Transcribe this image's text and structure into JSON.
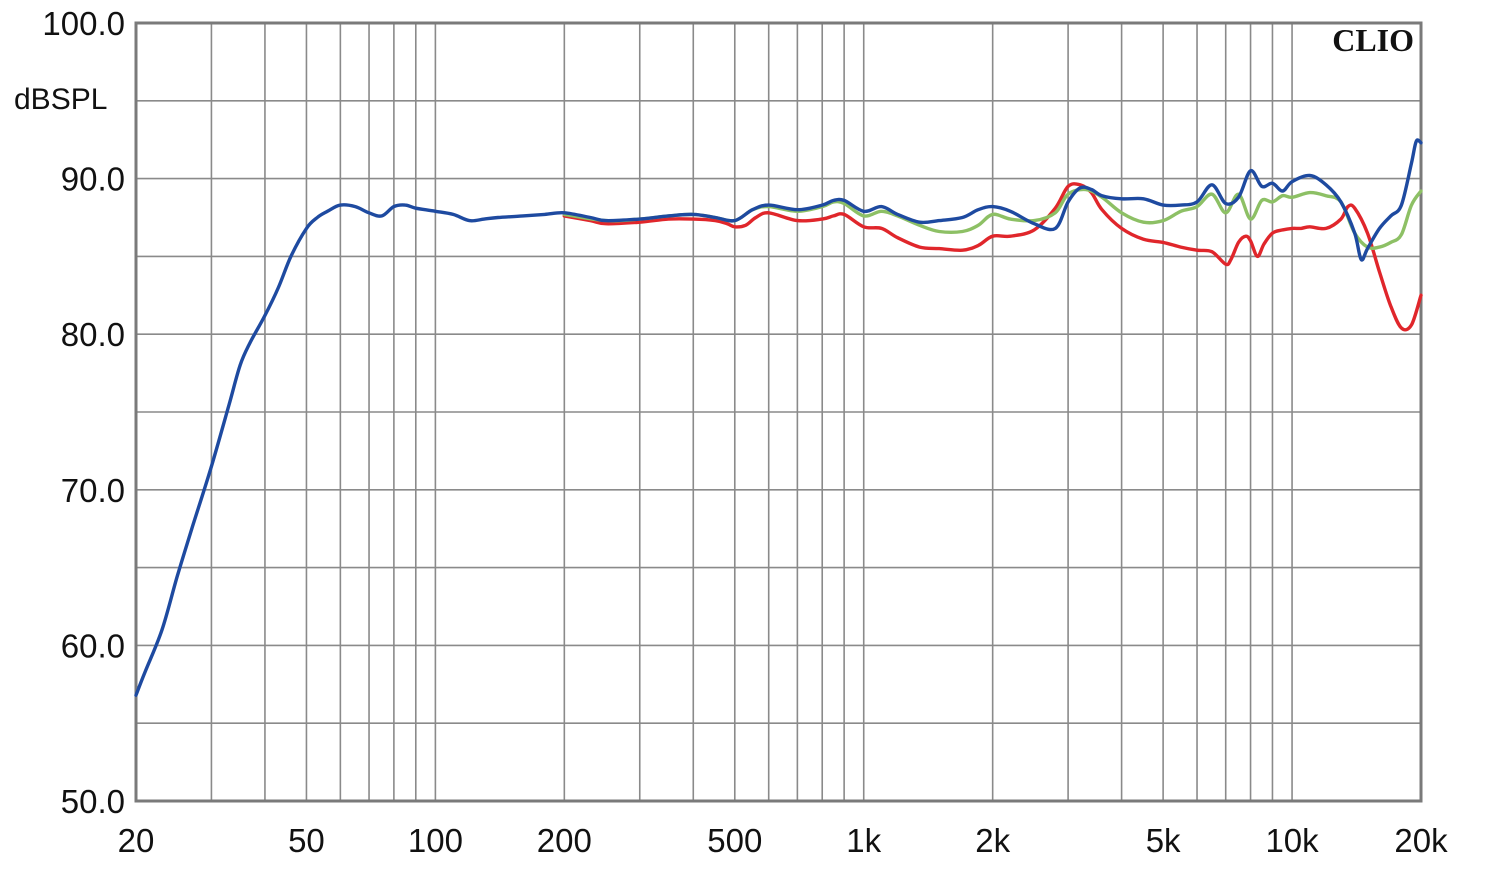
{
  "chart_data": {
    "type": "line",
    "title": "",
    "xlabel": "",
    "ylabel": "dBSPL",
    "brand": "CLIO",
    "x_scale": "log",
    "xlim": [
      20,
      20000
    ],
    "ylim": [
      50,
      100
    ],
    "grid": true,
    "x_ticks": [
      {
        "value": 20,
        "label": "20"
      },
      {
        "value": 50,
        "label": "50"
      },
      {
        "value": 100,
        "label": "100"
      },
      {
        "value": 200,
        "label": "200"
      },
      {
        "value": 500,
        "label": "500"
      },
      {
        "value": 1000,
        "label": "1k"
      },
      {
        "value": 2000,
        "label": "2k"
      },
      {
        "value": 5000,
        "label": "5k"
      },
      {
        "value": 10000,
        "label": "10k"
      },
      {
        "value": 20000,
        "label": "20k"
      }
    ],
    "y_ticks": [
      {
        "value": 100,
        "label": "100.0"
      },
      {
        "value": 90,
        "label": "90.0"
      },
      {
        "value": 80,
        "label": "80.0"
      },
      {
        "value": 70,
        "label": "70.0"
      },
      {
        "value": 60,
        "label": "60.0"
      },
      {
        "value": 50,
        "label": "50.0"
      }
    ],
    "series": [
      {
        "color": "#e0262b",
        "x": [
          200,
          230,
          250,
          300,
          350,
          400,
          450,
          480,
          500,
          530,
          560,
          600,
          700,
          800,
          850,
          900,
          1000,
          1100,
          1200,
          1350,
          1500,
          1700,
          1850,
          2000,
          2200,
          2500,
          2800,
          3000,
          3200,
          3400,
          3600,
          4000,
          4500,
          5000,
          5500,
          6000,
          6500,
          7000,
          7200,
          7500,
          7800,
          8000,
          8300,
          8600,
          9000,
          9500,
          10000,
          10500,
          11000,
          12000,
          13000,
          13500,
          14000,
          15000,
          16000,
          17000,
          18000,
          19000,
          20000
        ],
        "y": [
          87.6,
          87.3,
          87.1,
          87.2,
          87.4,
          87.4,
          87.3,
          87.1,
          86.9,
          87.0,
          87.5,
          87.8,
          87.3,
          87.4,
          87.6,
          87.7,
          86.9,
          86.8,
          86.2,
          85.6,
          85.5,
          85.4,
          85.7,
          86.3,
          86.3,
          86.7,
          88.1,
          89.5,
          89.6,
          89.1,
          88.0,
          86.8,
          86.1,
          85.9,
          85.6,
          85.4,
          85.3,
          84.5,
          84.8,
          85.9,
          86.3,
          86.0,
          85.0,
          85.8,
          86.5,
          86.7,
          86.8,
          86.8,
          86.9,
          86.8,
          87.4,
          88.2,
          88.1,
          86.5,
          84.0,
          81.8,
          80.4,
          80.6,
          82.5
        ]
      },
      {
        "color": "#8dc065",
        "x": [
          200,
          250,
          300,
          350,
          400,
          450,
          500,
          550,
          600,
          700,
          800,
          850,
          900,
          1000,
          1100,
          1200,
          1350,
          1500,
          1700,
          1850,
          2000,
          2200,
          2500,
          2800,
          3000,
          3300,
          3600,
          4000,
          4500,
          5000,
          5500,
          6000,
          6500,
          7000,
          7500,
          8000,
          8500,
          9000,
          9500,
          10000,
          11000,
          12000,
          13000,
          14000,
          15000,
          16000,
          17000,
          18000,
          19000,
          20000
        ],
        "y": [
          87.7,
          87.3,
          87.4,
          87.6,
          87.7,
          87.5,
          87.3,
          88.0,
          88.2,
          87.9,
          88.2,
          88.5,
          88.4,
          87.6,
          87.9,
          87.6,
          87.0,
          86.6,
          86.6,
          87.0,
          87.7,
          87.4,
          87.3,
          87.8,
          89.0,
          89.3,
          88.8,
          87.8,
          87.2,
          87.3,
          87.9,
          88.2,
          89.0,
          87.8,
          89.0,
          87.4,
          88.6,
          88.5,
          88.9,
          88.8,
          89.1,
          88.9,
          88.5,
          86.5,
          85.6,
          85.6,
          85.9,
          86.4,
          88.3,
          89.2
        ]
      },
      {
        "color": "#1e4aa0",
        "x": [
          20,
          21,
          23,
          25,
          27,
          30,
          33,
          35,
          37,
          40,
          43,
          46,
          50,
          53,
          56,
          60,
          65,
          70,
          75,
          80,
          85,
          90,
          100,
          110,
          120,
          130,
          140,
          160,
          180,
          200,
          230,
          250,
          300,
          350,
          400,
          450,
          500,
          550,
          600,
          700,
          800,
          850,
          900,
          1000,
          1100,
          1200,
          1350,
          1500,
          1700,
          1850,
          2000,
          2200,
          2500,
          2800,
          3000,
          3200,
          3400,
          3600,
          4000,
          4500,
          5000,
          5500,
          6000,
          6500,
          7000,
          7500,
          8000,
          8500,
          9000,
          9500,
          10000,
          11000,
          12000,
          13000,
          14000,
          14500,
          15000,
          16000,
          17000,
          18000,
          19000,
          19500,
          20000
        ],
        "y": [
          56.8,
          58.3,
          61.0,
          64.5,
          67.5,
          71.5,
          75.5,
          78.0,
          79.5,
          81.2,
          83.0,
          85.0,
          86.8,
          87.5,
          87.9,
          88.3,
          88.2,
          87.8,
          87.6,
          88.2,
          88.3,
          88.1,
          87.9,
          87.7,
          87.3,
          87.4,
          87.5,
          87.6,
          87.7,
          87.8,
          87.5,
          87.3,
          87.4,
          87.6,
          87.7,
          87.5,
          87.3,
          88.0,
          88.3,
          88.0,
          88.3,
          88.6,
          88.6,
          87.9,
          88.2,
          87.7,
          87.2,
          87.3,
          87.5,
          88.0,
          88.2,
          87.9,
          87.1,
          86.8,
          88.5,
          89.4,
          89.3,
          88.9,
          88.7,
          88.7,
          88.3,
          88.3,
          88.5,
          89.6,
          88.4,
          88.8,
          90.5,
          89.5,
          89.7,
          89.2,
          89.8,
          90.2,
          89.6,
          88.5,
          86.5,
          84.8,
          85.5,
          86.8,
          87.6,
          88.3,
          91.0,
          92.4,
          92.3
        ]
      }
    ]
  }
}
